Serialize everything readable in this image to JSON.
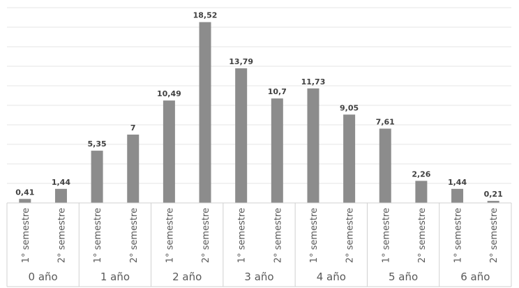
{
  "chart_data": {
    "type": "bar",
    "groups": [
      "0 año",
      "1 año",
      "2 año",
      "3 año",
      "4 año",
      "5 año",
      "6 año"
    ],
    "subcategories": [
      "1° semestre",
      "2° semestre"
    ],
    "categories": [
      "0 año 1° semestre",
      "0 año 2° semestre",
      "1 año 1° semestre",
      "1 año 2° semestre",
      "2 año 1° semestre",
      "2 año 2° semestre",
      "3 año 1° semestre",
      "3 año 2° semestre",
      "4 año 1° semestre",
      "4 año 2° semestre",
      "5 año 1° semestre",
      "5 año 2° semestre",
      "6 año 1° semestre",
      "6 año 2° semestre"
    ],
    "values": [
      0.41,
      1.44,
      5.35,
      7,
      10.49,
      18.52,
      13.79,
      10.7,
      11.73,
      9.05,
      7.61,
      2.26,
      1.44,
      0.21
    ],
    "value_labels": [
      "0,41",
      "1,44",
      "5,35",
      "7",
      "10,49",
      "18,52",
      "13,79",
      "10,7",
      "11,73",
      "9,05",
      "7,61",
      "2,26",
      "1,44",
      "0,21"
    ],
    "ylim": [
      0,
      20
    ],
    "grid": true,
    "bar_color": "#8c8c8c",
    "title": "",
    "xlabel": "",
    "ylabel": ""
  }
}
